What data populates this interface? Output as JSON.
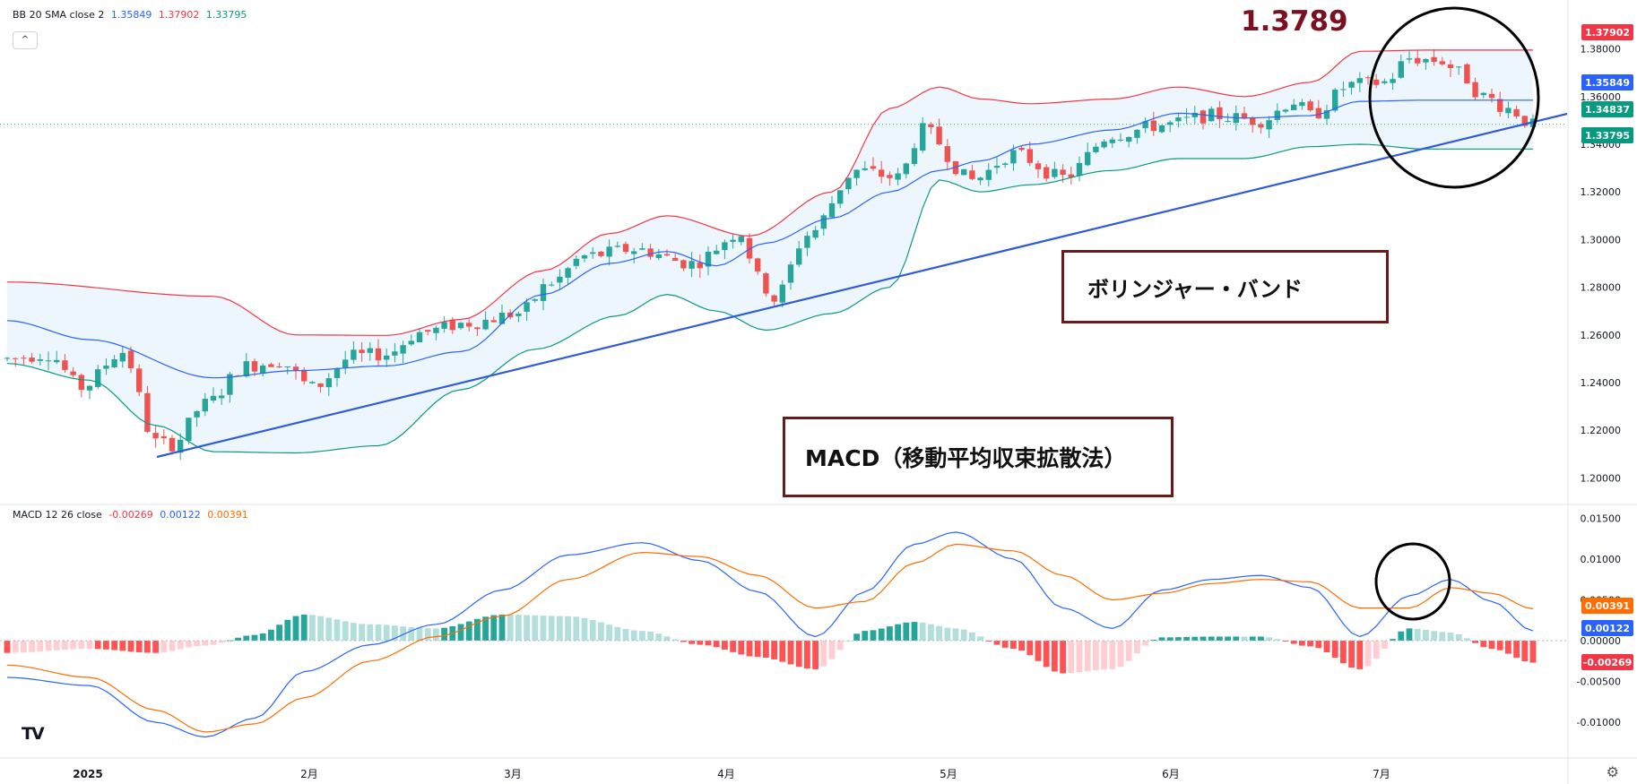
{
  "bb_legend": {
    "name": "BB 20 SMA close 2",
    "basis": "1.35849",
    "upper": "1.37902",
    "lower": "1.33795"
  },
  "macd_legend": {
    "name": "MACD 12 26 close",
    "hist": "-0.00269",
    "macd": "0.00122",
    "signal": "0.00391"
  },
  "annotations": {
    "peak_value": "1.3789",
    "bb_box": "ボリンジャー・バンド",
    "macd_box": "MACD（移動平均収束拡散法）"
  },
  "collapse_icon": "^",
  "logo_text": "TV",
  "colors": {
    "up": "#26a69a",
    "down": "#ef5350",
    "bb_upper": "#f23645",
    "bb_basis": "#2962ff",
    "bb_lower": "#089981",
    "bb_fill": "#eef6fd",
    "macd": "#2962ff",
    "signal": "#ff6d00",
    "trend": "#2f5bd8",
    "annotation": "#7a1020"
  },
  "chart_data": [
    {
      "type": "candlestick",
      "title": "",
      "ylim": [
        1.19,
        1.39
      ],
      "y_ticks": [
        "1.38000",
        "1.36000",
        "1.34000",
        "1.32000",
        "1.30000",
        "1.28000",
        "1.26000",
        "1.24000",
        "1.22000",
        "1.20000"
      ],
      "x_ticks": [
        "2025",
        "2月",
        "3月",
        "4月",
        "5月",
        "6月",
        "7月"
      ],
      "price_labels": [
        "1.37902",
        "1.35849",
        "1.34837",
        "1.33795"
      ],
      "current_price": 1.34837,
      "bb_upper_anchors": [
        [
          0,
          1.2822
        ],
        [
          25,
          1.2762
        ],
        [
          35,
          1.26
        ],
        [
          46,
          1.2598
        ],
        [
          55,
          1.2665
        ],
        [
          65,
          1.287
        ],
        [
          73,
          1.3025
        ],
        [
          80,
          1.31
        ],
        [
          90,
          1.3015
        ],
        [
          100,
          1.32
        ],
        [
          107,
          1.355
        ],
        [
          113,
          1.364
        ],
        [
          118,
          1.359
        ],
        [
          124,
          1.357
        ],
        [
          134,
          1.359
        ],
        [
          142,
          1.364
        ],
        [
          150,
          1.36
        ],
        [
          158,
          1.366
        ],
        [
          164,
          1.379
        ],
        [
          172,
          1.3795
        ]
      ],
      "bb_basis_anchors": [
        [
          0,
          1.266
        ],
        [
          10,
          1.258
        ],
        [
          25,
          1.242
        ],
        [
          35,
          1.245
        ],
        [
          46,
          1.247
        ],
        [
          55,
          1.253
        ],
        [
          65,
          1.277
        ],
        [
          73,
          1.29
        ],
        [
          80,
          1.295
        ],
        [
          86,
          1.289
        ],
        [
          92,
          1.2985
        ],
        [
          100,
          1.309
        ],
        [
          107,
          1.32
        ],
        [
          113,
          1.329
        ],
        [
          118,
          1.333
        ],
        [
          124,
          1.34
        ],
        [
          134,
          1.346
        ],
        [
          142,
          1.353
        ],
        [
          150,
          1.351
        ],
        [
          158,
          1.352
        ],
        [
          164,
          1.358
        ],
        [
          172,
          1.3585
        ]
      ],
      "bb_lower_anchors": [
        [
          0,
          1.248
        ],
        [
          10,
          1.241
        ],
        [
          18,
          1.222
        ],
        [
          25,
          1.211
        ],
        [
          35,
          1.2105
        ],
        [
          45,
          1.2135
        ],
        [
          55,
          1.237
        ],
        [
          64,
          1.254
        ],
        [
          74,
          1.268
        ],
        [
          80,
          1.277
        ],
        [
          86,
          1.27
        ],
        [
          92,
          1.262
        ],
        [
          100,
          1.269
        ],
        [
          107,
          1.28
        ],
        [
          113,
          1.325
        ],
        [
          118,
          1.32
        ],
        [
          124,
          1.323
        ],
        [
          134,
          1.329
        ],
        [
          142,
          1.334
        ],
        [
          150,
          1.334
        ],
        [
          158,
          1.339
        ],
        [
          164,
          1.34
        ],
        [
          172,
          1.338
        ]
      ],
      "close_anchors": [
        [
          0,
          1.25
        ],
        [
          5,
          1.252
        ],
        [
          9,
          1.238
        ],
        [
          14,
          1.253
        ],
        [
          18,
          1.215
        ],
        [
          20,
          1.214
        ],
        [
          24,
          1.231
        ],
        [
          29,
          1.247
        ],
        [
          33,
          1.249
        ],
        [
          37,
          1.238
        ],
        [
          42,
          1.251
        ],
        [
          46,
          1.252
        ],
        [
          50,
          1.261
        ],
        [
          56,
          1.265
        ],
        [
          62,
          1.269
        ],
        [
          66,
          1.282
        ],
        [
          70,
          1.293
        ],
        [
          76,
          1.296
        ],
        [
          83,
          1.29
        ],
        [
          89,
          1.303
        ],
        [
          91,
          1.284
        ],
        [
          93,
          1.275
        ],
        [
          97,
          1.302
        ],
        [
          103,
          1.329
        ],
        [
          108,
          1.326
        ],
        [
          111,
          1.346
        ],
        [
          117,
          1.325
        ],
        [
          122,
          1.336
        ],
        [
          128,
          1.326
        ],
        [
          134,
          1.344
        ],
        [
          140,
          1.348
        ],
        [
          146,
          1.352
        ],
        [
          152,
          1.35
        ],
        [
          156,
          1.358
        ],
        [
          158,
          1.352
        ],
        [
          163,
          1.365
        ],
        [
          167,
          1.366
        ],
        [
          170,
          1.376
        ],
        [
          174,
          1.375
        ],
        [
          176,
          1.37
        ],
        [
          179,
          1.36
        ],
        [
          182,
          1.355
        ],
        [
          185,
          1.348
        ]
      ],
      "macd_ylim": [
        -0.0135,
        0.0157
      ],
      "macd_y_ticks": [
        "0.01500",
        "0.01000",
        "0.00500",
        "0.00000",
        "-0.00500",
        "-0.01000"
      ],
      "macd_labels": [
        "0.00391",
        "0.00122",
        "-0.00269"
      ],
      "macd_anchors": [
        [
          0,
          -0.0045
        ],
        [
          10,
          -0.0055
        ],
        [
          18,
          -0.01
        ],
        [
          24,
          -0.0118
        ],
        [
          30,
          -0.0095
        ],
        [
          36,
          -0.0038
        ],
        [
          44,
          -0.0005
        ],
        [
          52,
          0.002
        ],
        [
          60,
          0.0062
        ],
        [
          68,
          0.0105
        ],
        [
          77,
          0.012
        ],
        [
          84,
          0.0098
        ],
        [
          91,
          0.006
        ],
        [
          98,
          0.0005
        ],
        [
          104,
          0.006
        ],
        [
          110,
          0.0118
        ],
        [
          115,
          0.0133
        ],
        [
          122,
          0.01
        ],
        [
          128,
          0.004
        ],
        [
          134,
          0.0015
        ],
        [
          140,
          0.0062
        ],
        [
          146,
          0.0075
        ],
        [
          152,
          0.008
        ],
        [
          158,
          0.0065
        ],
        [
          164,
          0.0005
        ],
        [
          170,
          0.0055
        ],
        [
          175,
          0.0075
        ],
        [
          180,
          0.0048
        ],
        [
          185,
          0.0012
        ]
      ],
      "signal_anchors": [
        [
          0,
          -0.003
        ],
        [
          10,
          -0.0045
        ],
        [
          18,
          -0.0085
        ],
        [
          24,
          -0.0112
        ],
        [
          30,
          -0.0102
        ],
        [
          36,
          -0.007
        ],
        [
          44,
          -0.0025
        ],
        [
          52,
          0.0005
        ],
        [
          60,
          0.003
        ],
        [
          68,
          0.0075
        ],
        [
          77,
          0.0108
        ],
        [
          84,
          0.0103
        ],
        [
          91,
          0.008
        ],
        [
          98,
          0.004
        ],
        [
          104,
          0.0048
        ],
        [
          110,
          0.0095
        ],
        [
          115,
          0.0118
        ],
        [
          122,
          0.011
        ],
        [
          128,
          0.008
        ],
        [
          134,
          0.005
        ],
        [
          140,
          0.0058
        ],
        [
          146,
          0.007
        ],
        [
          152,
          0.0075
        ],
        [
          158,
          0.0072
        ],
        [
          164,
          0.004
        ],
        [
          170,
          0.004
        ],
        [
          175,
          0.0065
        ],
        [
          180,
          0.0058
        ],
        [
          185,
          0.0039
        ]
      ],
      "grid": true
    }
  ]
}
